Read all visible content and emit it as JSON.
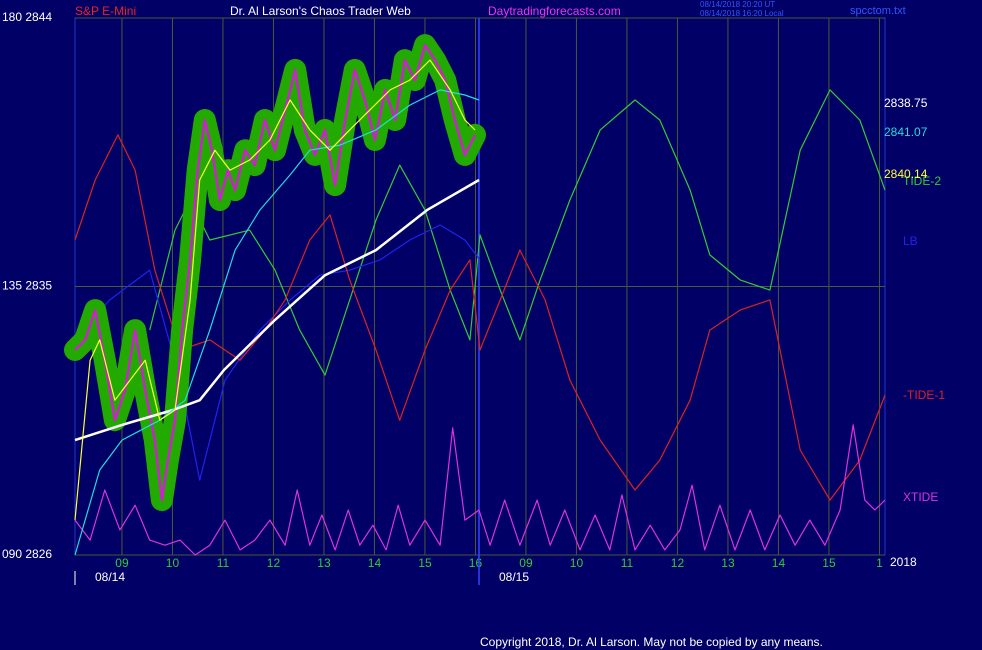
{
  "chart_data": {
    "type": "line",
    "header": {
      "instrument": "S&P E-Mini",
      "title": "Dr. Al Larson's Chaos Trader Web",
      "site": "Daytradingforecasts.com",
      "timestamps": [
        "08/14/2018 20:20 UT",
        "08/14/2018 16:20 Local"
      ],
      "file": "spcctom.txt"
    },
    "year": "2018",
    "copyright": "Copyright 2018, Dr. Al Larson. May not be copied by any means.",
    "xlim": [
      -0.93,
      15.11
    ],
    "ylim": [
      2826,
      2844
    ],
    "yticks": [
      {
        "value": 2826,
        "label": "090 2826"
      },
      {
        "value": 2835,
        "label": "135 2835"
      },
      {
        "value": 2844,
        "label": "180 2844"
      }
    ],
    "xticks": [
      {
        "value": 0,
        "label": "09"
      },
      {
        "value": 1,
        "label": "10"
      },
      {
        "value": 2,
        "label": "11"
      },
      {
        "value": 3,
        "label": "12"
      },
      {
        "value": 4,
        "label": "13"
      },
      {
        "value": 5,
        "label": "14"
      },
      {
        "value": 6,
        "label": "15"
      },
      {
        "value": 7,
        "label": "16"
      },
      {
        "value": 8,
        "label": "09"
      },
      {
        "value": 9,
        "label": "10"
      },
      {
        "value": 10,
        "label": "11"
      },
      {
        "value": 11,
        "label": "12"
      },
      {
        "value": 12,
        "label": "13"
      },
      {
        "value": 13,
        "label": "14"
      },
      {
        "value": 14,
        "label": "15"
      },
      {
        "value": 15,
        "label": "1"
      }
    ],
    "date_ticks": [
      {
        "value": -0.93,
        "label": "08/14"
      },
      {
        "value": 7.07,
        "label": "08/15"
      }
    ],
    "session_break": 7.07,
    "grid": true,
    "series": [
      {
        "name": "TIDE-2",
        "color": "#33cc33",
        "x": [
          0.55,
          1.05,
          1.35,
          1.74,
          2.53,
          3.03,
          3.52,
          4.02,
          4.51,
          5.03,
          5.5,
          6.0,
          6.5,
          6.89,
          7.09,
          7.49,
          7.88,
          8.28,
          8.87,
          9.47,
          10.16,
          10.65,
          11.25,
          11.64,
          12.24,
          12.83,
          13.43,
          14.02,
          14.61,
          15.11
        ],
        "values": [
          2833.54,
          2836.89,
          2837.9,
          2836.56,
          2836.89,
          2835.55,
          2833.54,
          2832.03,
          2834.55,
          2837.23,
          2839.07,
          2837.56,
          2834.88,
          2833.21,
          2836.73,
          2834.88,
          2833.21,
          2835.22,
          2837.9,
          2840.25,
          2841.25,
          2840.58,
          2838.23,
          2836.06,
          2835.22,
          2834.88,
          2839.57,
          2841.59,
          2840.58,
          2838.23
        ]
      },
      {
        "name": "LB",
        "color": "#2222ee",
        "x": [
          -0.93,
          -0.24,
          0.55,
          1.15,
          1.54,
          2.04,
          2.73,
          3.33,
          3.92,
          4.51,
          5.11,
          5.7,
          6.3,
          6.79,
          7.09
        ],
        "values": [
          2833.21,
          2834.55,
          2835.55,
          2831.86,
          2828.51,
          2831.86,
          2833.54,
          2834.55,
          2835.38,
          2835.55,
          2835.89,
          2836.56,
          2837.06,
          2836.56,
          2835.89
        ]
      },
      {
        "name": "-TIDE-1",
        "color": "#dd2222",
        "x": [
          -0.93,
          -0.53,
          -0.08,
          0.26,
          0.65,
          1.15,
          1.74,
          2.34,
          2.83,
          3.23,
          3.72,
          4.12,
          4.51,
          5.03,
          5.5,
          6.0,
          6.5,
          6.89,
          7.09,
          7.49,
          7.88,
          8.38,
          8.87,
          9.47,
          10.16,
          10.65,
          11.25,
          11.64,
          12.24,
          12.83,
          13.43,
          14.02,
          14.61,
          15.11
        ],
        "values": [
          2836.56,
          2838.57,
          2840.08,
          2838.9,
          2835.55,
          2832.87,
          2833.21,
          2832.53,
          2833.54,
          2834.55,
          2836.56,
          2837.4,
          2835.22,
          2832.87,
          2830.52,
          2832.87,
          2834.88,
          2835.89,
          2832.87,
          2834.55,
          2836.22,
          2834.55,
          2831.86,
          2829.85,
          2828.18,
          2829.18,
          2831.19,
          2833.54,
          2834.21,
          2834.55,
          2829.52,
          2827.84,
          2829.18,
          2831.36
        ]
      },
      {
        "name": "XTIDE",
        "color": "#dd33dd",
        "x": [
          -0.93,
          -0.63,
          -0.34,
          -0.04,
          0.26,
          0.55,
          0.85,
          1.15,
          1.45,
          1.74,
          2.04,
          2.34,
          2.63,
          2.93,
          3.23,
          3.47,
          3.72,
          3.96,
          4.22,
          4.48,
          4.71,
          4.97,
          5.23,
          5.47,
          5.7,
          6.0,
          6.3,
          6.55,
          6.79,
          7.07,
          7.29,
          7.58,
          7.88,
          8.22,
          8.48,
          8.77,
          9.07,
          9.37,
          9.66,
          9.9,
          10.16,
          10.46,
          10.75,
          11.05,
          11.29,
          11.54,
          11.84,
          12.14,
          12.44,
          12.73,
          13.03,
          13.33,
          13.62,
          13.92,
          14.22,
          14.48,
          14.71,
          14.91,
          15.11
        ],
        "values": [
          2827.17,
          2826.5,
          2828.18,
          2826.84,
          2827.67,
          2826.5,
          2826.33,
          2826.5,
          2826.0,
          2826.33,
          2827.17,
          2826.17,
          2826.5,
          2827.17,
          2826.33,
          2828.18,
          2826.33,
          2827.34,
          2826.17,
          2827.51,
          2826.33,
          2827.0,
          2826.17,
          2827.67,
          2826.33,
          2827.17,
          2826.33,
          2830.26,
          2827.17,
          2827.51,
          2826.33,
          2827.84,
          2826.33,
          2827.84,
          2826.33,
          2827.51,
          2826.17,
          2827.34,
          2826.17,
          2828.01,
          2826.17,
          2827.0,
          2826.17,
          2826.84,
          2828.34,
          2826.17,
          2827.67,
          2826.17,
          2827.51,
          2826.17,
          2827.34,
          2826.33,
          2827.17,
          2826.33,
          2827.51,
          2830.36,
          2827.84,
          2827.51,
          2827.84
        ]
      },
      {
        "color": "#cc22cc",
        "halo": "#22aa00",
        "x": [
          -0.93,
          -0.73,
          -0.53,
          -0.34,
          -0.14,
          0.06,
          0.26,
          0.46,
          0.65,
          0.79,
          0.91,
          1.05,
          1.19,
          1.35,
          1.5,
          1.64,
          1.78,
          1.94,
          2.1,
          2.24,
          2.44,
          2.63,
          2.83,
          3.03,
          3.23,
          3.43,
          3.62,
          3.82,
          4.02,
          4.22,
          4.42,
          4.61,
          4.81,
          5.01,
          5.21,
          5.41,
          5.6,
          5.8,
          6.0,
          6.2,
          6.4,
          6.59,
          6.79,
          6.99
        ],
        "values": [
          2832.87,
          2833.21,
          2834.21,
          2832.53,
          2830.52,
          2831.53,
          2833.54,
          2831.53,
          2829.85,
          2827.84,
          2829.18,
          2830.52,
          2833.54,
          2835.89,
          2838.9,
          2840.58,
          2839.57,
          2837.9,
          2838.9,
          2838.23,
          2839.57,
          2839.07,
          2840.58,
          2839.57,
          2840.92,
          2842.26,
          2840.25,
          2839.41,
          2840.25,
          2838.4,
          2840.58,
          2842.26,
          2841.25,
          2839.91,
          2841.59,
          2840.58,
          2842.59,
          2841.92,
          2843.09,
          2842.59,
          2841.92,
          2840.58,
          2839.41,
          2840.08
        ]
      },
      {
        "color": "#ffffff",
        "last_label": "2838.75",
        "x": [
          -0.93,
          0,
          1.01,
          1.54,
          2.02,
          3.03,
          4.02,
          5.03,
          6.04,
          7.07
        ],
        "values": [
          2829.85,
          2830.36,
          2830.86,
          2831.19,
          2832.2,
          2833.88,
          2835.38,
          2836.22,
          2837.56,
          2838.57
        ]
      },
      {
        "color": "#22dddd",
        "last_label": "2841.07",
        "x": [
          -0.93,
          -0.44,
          0,
          0.75,
          1.25,
          1.74,
          2.24,
          2.73,
          3.33,
          3.72,
          4.32,
          5.03,
          5.7,
          6.3,
          6.79,
          7.07
        ],
        "values": [
          2826.0,
          2828.85,
          2829.85,
          2830.52,
          2831.19,
          2833.54,
          2836.22,
          2837.56,
          2838.74,
          2839.57,
          2839.74,
          2840.25,
          2841.08,
          2841.59,
          2841.42,
          2841.25
        ]
      },
      {
        "color": "#ffff33",
        "last_label": "2840.14",
        "x": [
          -0.93,
          -0.63,
          -0.44,
          -0.14,
          0.16,
          0.46,
          0.75,
          1.05,
          1.35,
          1.54,
          1.84,
          2.14,
          2.53,
          2.93,
          3.33,
          3.72,
          4.12,
          4.51,
          4.91,
          5.31,
          5.7,
          6.1,
          6.5,
          6.79,
          6.99
        ],
        "values": [
          2827.17,
          2832.53,
          2833.21,
          2831.19,
          2831.86,
          2832.53,
          2830.52,
          2830.86,
          2834.55,
          2838.57,
          2839.57,
          2838.9,
          2839.24,
          2839.91,
          2841.25,
          2840.25,
          2839.57,
          2840.25,
          2840.92,
          2841.59,
          2841.92,
          2842.59,
          2841.59,
          2840.58,
          2840.25
        ]
      }
    ]
  }
}
